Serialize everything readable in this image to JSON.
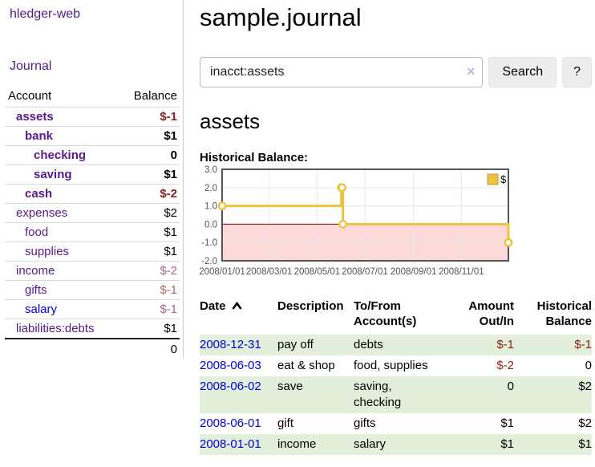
{
  "sidebar": {
    "brand": "hledger-web",
    "journal_link": "Journal",
    "accounts_table": {
      "account_header": "Account",
      "balance_header": "Balance",
      "rows": [
        {
          "name": "assets",
          "depth": 0,
          "balance": "$-1",
          "bold": true,
          "balance_tone": "neg-strong",
          "link_style": "visited"
        },
        {
          "name": "bank",
          "depth": 1,
          "balance": "$1",
          "bold": true,
          "balance_tone": "normal",
          "link_style": "visited"
        },
        {
          "name": "checking",
          "depth": 2,
          "balance": "0",
          "bold": true,
          "balance_tone": "normal",
          "link_style": "visited"
        },
        {
          "name": "saving",
          "depth": 2,
          "balance": "$1",
          "bold": true,
          "balance_tone": "normal",
          "link_style": "visited"
        },
        {
          "name": "cash",
          "depth": 1,
          "balance": "$-2",
          "bold": true,
          "balance_tone": "neg-strong",
          "link_style": "visited"
        },
        {
          "name": "expenses",
          "depth": 0,
          "balance": "$2",
          "bold": false,
          "balance_tone": "normal",
          "link_style": "visited"
        },
        {
          "name": "food",
          "depth": 1,
          "balance": "$1",
          "bold": false,
          "balance_tone": "normal",
          "link_style": "visited"
        },
        {
          "name": "supplies",
          "depth": 1,
          "balance": "$1",
          "bold": false,
          "balance_tone": "normal",
          "link_style": "visited"
        },
        {
          "name": "income",
          "depth": 0,
          "balance": "$-2",
          "bold": false,
          "balance_tone": "neg-soft",
          "link_style": "visited"
        },
        {
          "name": "gifts",
          "depth": 1,
          "balance": "$-1",
          "bold": false,
          "balance_tone": "neg-soft",
          "link_style": "visited"
        },
        {
          "name": "salary",
          "depth": 1,
          "balance": "$-1",
          "bold": false,
          "balance_tone": "neg-soft",
          "link_style": "unvisited"
        },
        {
          "name": "liabilities:debts",
          "depth": 0,
          "balance": "$1",
          "bold": false,
          "balance_tone": "normal",
          "link_style": "visited"
        }
      ],
      "total": "0"
    }
  },
  "header": {
    "title": "sample.journal"
  },
  "search": {
    "value": "inacct:assets",
    "clear_icon": "×",
    "search_label": "Search",
    "help_label": "?"
  },
  "account_page": {
    "heading": "assets",
    "chart_label": "Historical Balance:"
  },
  "chart_data": {
    "type": "line",
    "step": true,
    "title": "Historical Balance",
    "series": [
      {
        "name": "$",
        "color": "#edc240",
        "points": [
          {
            "x": "2008-01-01",
            "y": 1
          },
          {
            "x": "2008-06-01",
            "y": 2
          },
          {
            "x": "2008-06-02",
            "y": 2
          },
          {
            "x": "2008-06-03",
            "y": 0
          },
          {
            "x": "2008-12-31",
            "y": -1
          }
        ]
      }
    ],
    "xlim": [
      "2008-01-01",
      "2008-12-31"
    ],
    "ylim": [
      -2,
      3
    ],
    "yticks": [
      {
        "value": 3,
        "label": "3.0"
      },
      {
        "value": 2,
        "label": "2.0"
      },
      {
        "value": 1,
        "label": "1.0"
      },
      {
        "value": 0,
        "label": "0.0"
      },
      {
        "value": -1,
        "label": "-1.0"
      },
      {
        "value": -2,
        "label": "-2.0"
      }
    ],
    "xticks": [
      {
        "date": "2008-01-01",
        "label": "2008/01/01"
      },
      {
        "date": "2008-03-01",
        "label": "2008/03/01"
      },
      {
        "date": "2008-05-01",
        "label": "2008/05/01"
      },
      {
        "date": "2008-07-01",
        "label": "2008/07/01"
      },
      {
        "date": "2008-09-01",
        "label": "2008/09/01"
      },
      {
        "date": "2008-11-01",
        "label": "2008/11/01"
      }
    ],
    "legend": {
      "label": "$",
      "position": "top-right"
    },
    "grid": true,
    "colors": {
      "negative_region": "#fcdada",
      "zero_line": "#8b0000",
      "grid_line": "#e8e8e8",
      "border": "#545454",
      "tick_text": "#545454",
      "marker_fill": "#ffffff"
    }
  },
  "register_table": {
    "headers": [
      {
        "label": "Date",
        "sorted": "asc"
      },
      {
        "label": "Description"
      },
      {
        "label": "To/From Account(s)"
      },
      {
        "label": "Amount Out/In",
        "align": "right"
      },
      {
        "label": "Historical Balance",
        "align": "right"
      }
    ],
    "rows": [
      {
        "date": "2008-12-31",
        "description": "pay off",
        "accounts": "debts",
        "amount": "$-1",
        "amount_negative": true,
        "balance": "$-1",
        "balance_negative": true
      },
      {
        "date": "2008-06-03",
        "description": "eat & shop",
        "accounts": "food, supplies",
        "amount": "$-2",
        "amount_negative": true,
        "balance": "0",
        "balance_negative": false
      },
      {
        "date": "2008-06-02",
        "description": "save",
        "accounts": "saving, checking",
        "amount": "0",
        "amount_negative": false,
        "balance": "$2",
        "balance_negative": false
      },
      {
        "date": "2008-06-01",
        "description": "gift",
        "accounts": "gifts",
        "amount": "$1",
        "amount_negative": false,
        "balance": "$2",
        "balance_negative": false
      },
      {
        "date": "2008-01-01",
        "description": "income",
        "accounts": "salary",
        "amount": "$1",
        "amount_negative": false,
        "balance": "$1",
        "balance_negative": false
      }
    ]
  }
}
